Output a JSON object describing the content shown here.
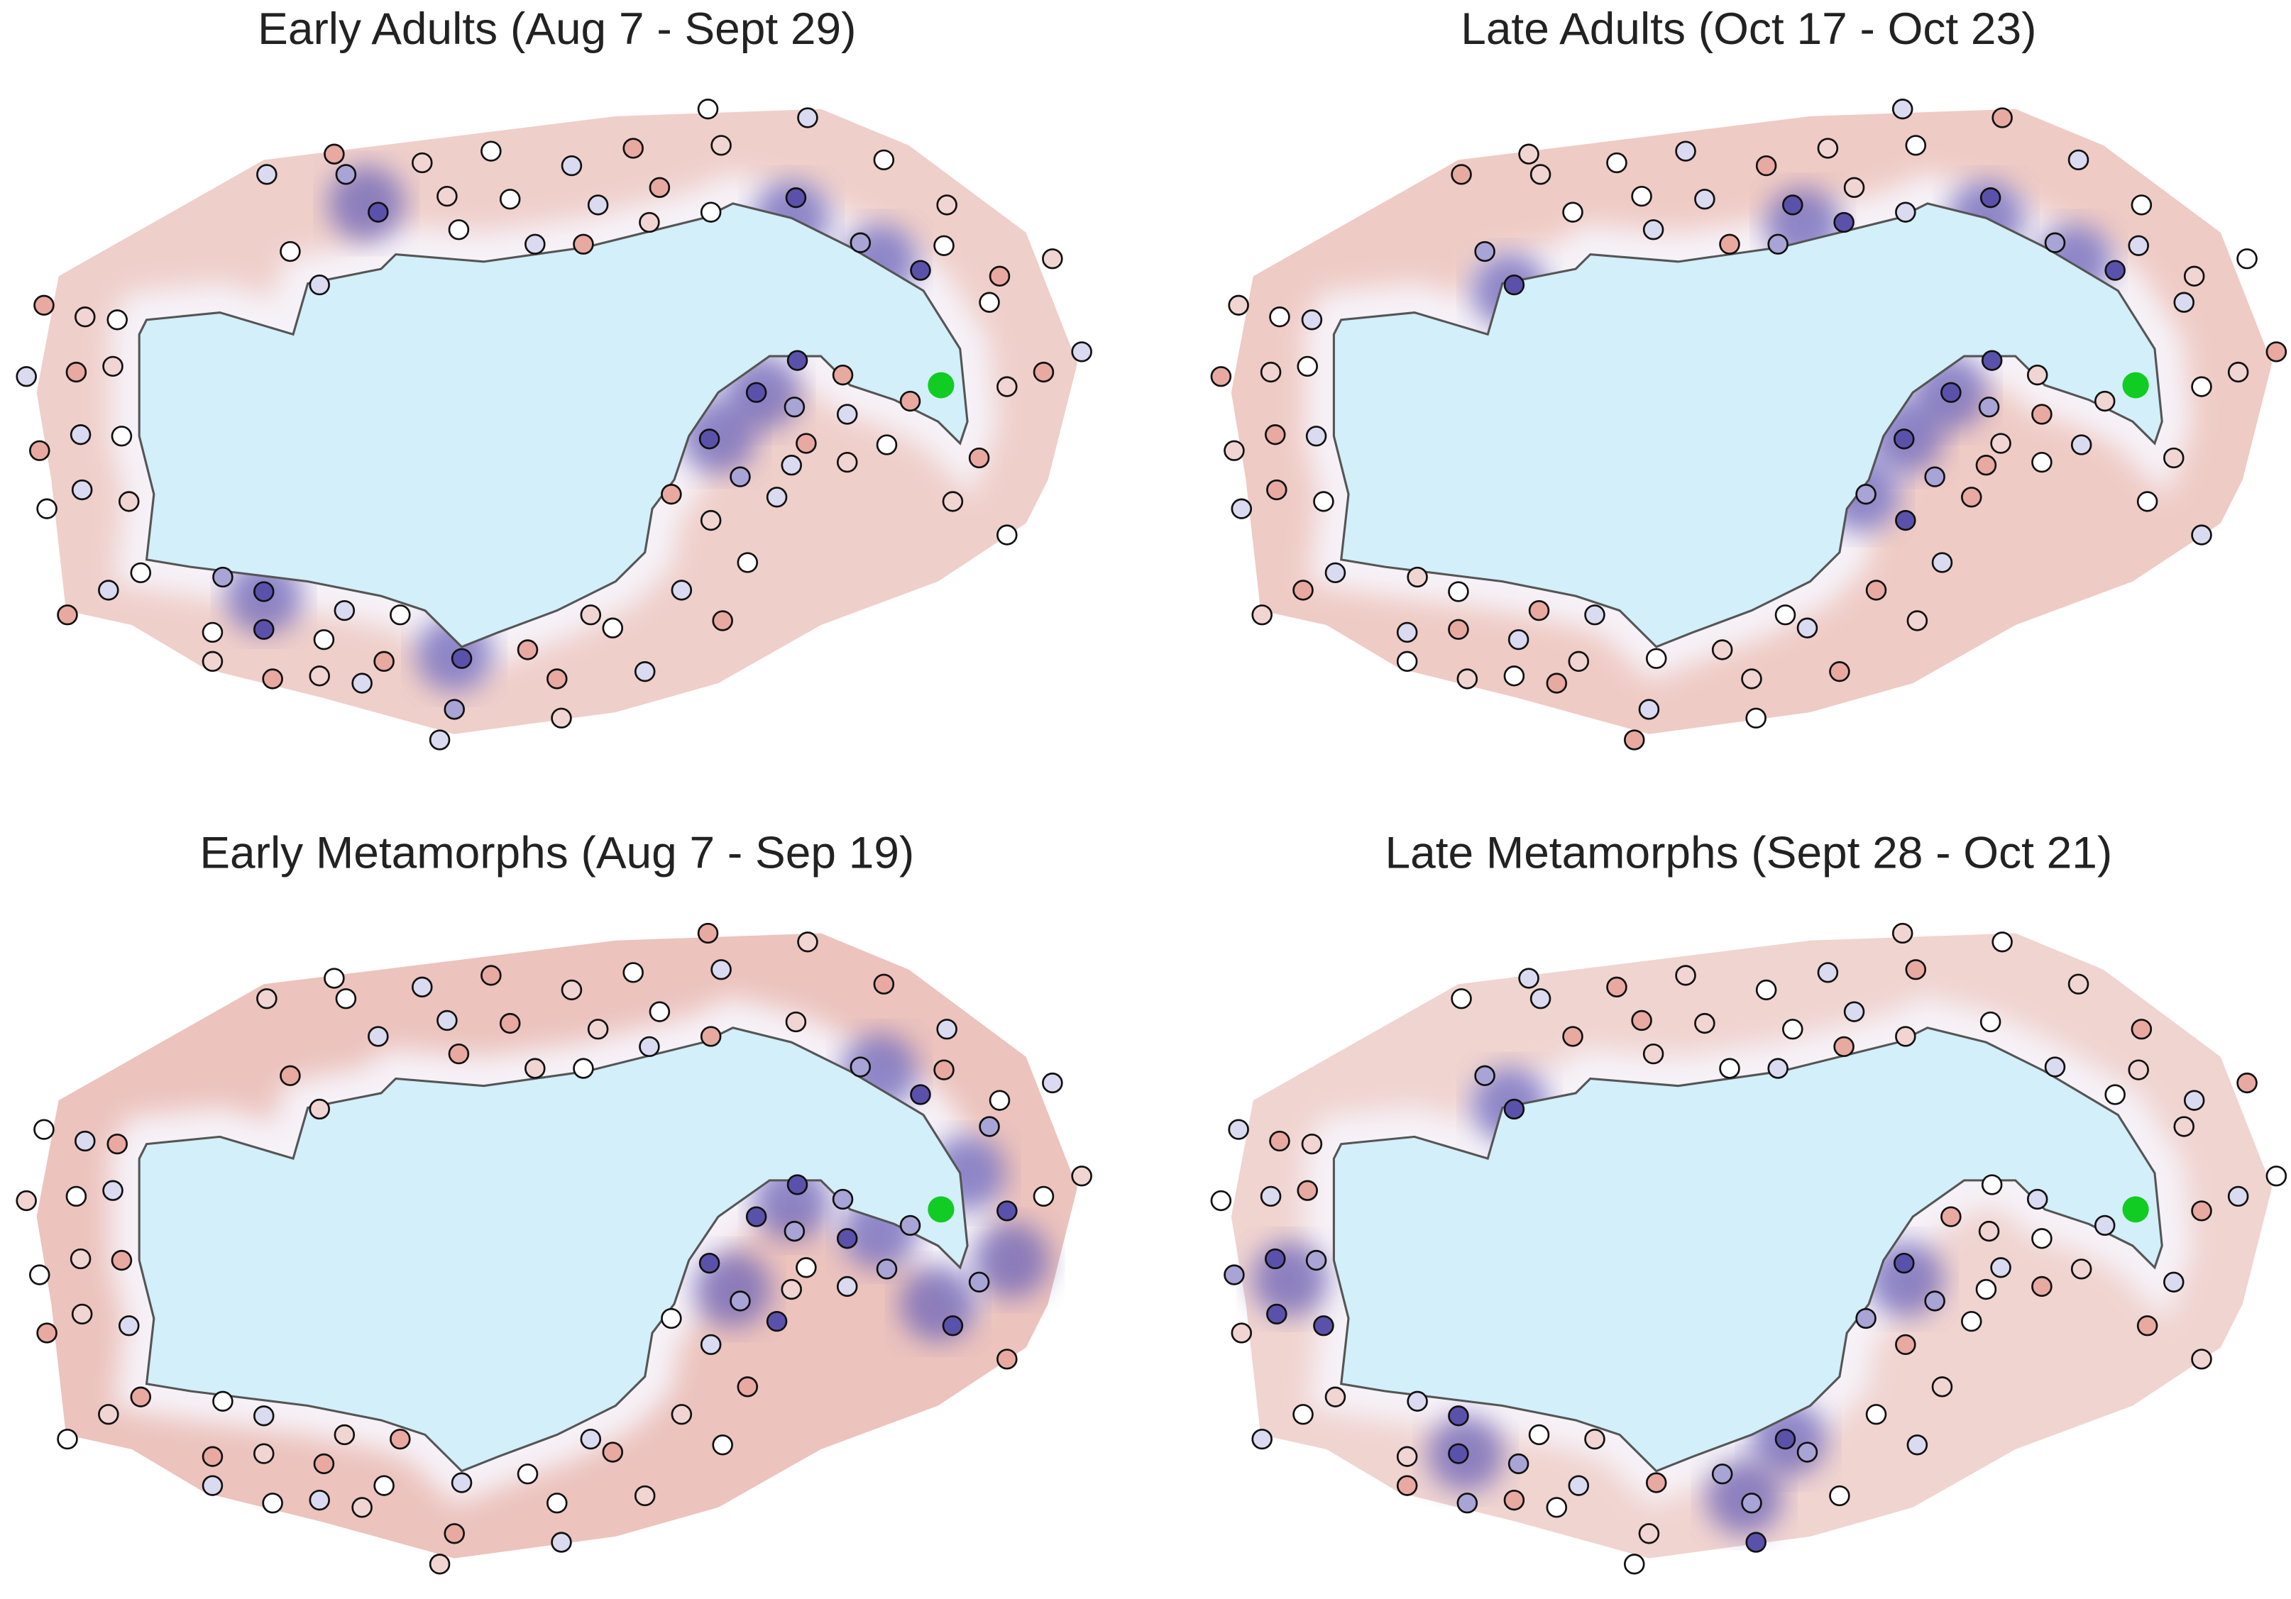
{
  "panels": [
    {
      "title": "Early Adults (Aug 7 - Sept 29)"
    },
    {
      "title": "Late Adults (Oct 17 - Oct 23)"
    },
    {
      "title": "Early Metamorphs (Aug 7 - Sep 19)"
    },
    {
      "title": "Late Metamorphs (Sept 28 - Oct 21)"
    }
  ]
}
